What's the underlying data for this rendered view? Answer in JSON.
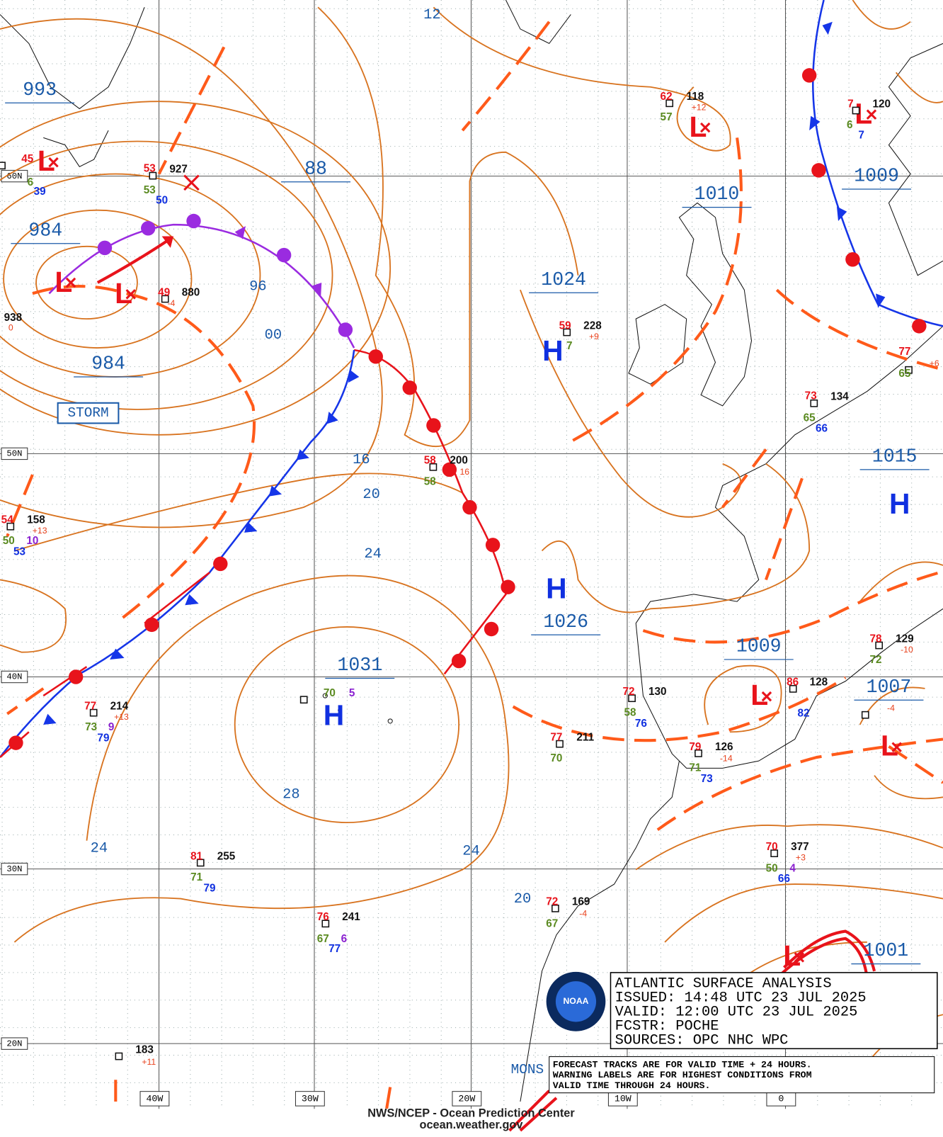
{
  "map": {
    "lat_labels": [
      "60N",
      "50N",
      "40N",
      "30N",
      "20N"
    ],
    "lon_labels": [
      "40W",
      "30W",
      "20W",
      "10W",
      "0"
    ],
    "pressure_labels": [
      "993",
      "984",
      "88",
      "984",
      "1024",
      "1010",
      "1009",
      "1026",
      "1031",
      "1009",
      "1007",
      "1015",
      "1001"
    ],
    "isobar_labels": [
      "12",
      "96",
      "00",
      "16",
      "20",
      "24",
      "28",
      "24",
      "24",
      "20"
    ],
    "highs": [
      "H",
      "H",
      "H",
      "H"
    ],
    "lows": [
      "L",
      "L",
      "L",
      "L",
      "L",
      "L",
      "L",
      "L"
    ],
    "warning": "STORM",
    "partial_label": "MONS",
    "stations": [
      [
        "45",
        "6",
        "39"
      ],
      [
        "53",
        "927",
        "53",
        "50"
      ],
      [
        "49",
        "880",
        "-4"
      ],
      [
        "938",
        "0"
      ],
      [
        "59",
        "228",
        "+9",
        "7"
      ],
      [
        "62",
        "118",
        "+12",
        "57"
      ],
      [
        "7",
        "120",
        "6",
        "7"
      ],
      [
        "77",
        "+6",
        "65"
      ],
      [
        "73",
        "134",
        "65",
        "66"
      ],
      [
        "58",
        "200",
        "16",
        "58"
      ],
      [
        "54",
        "158",
        "+13",
        "50",
        "10",
        "53"
      ],
      [
        "77",
        "214",
        "+13",
        "73",
        "9",
        "79"
      ],
      [
        "70",
        "5"
      ],
      [
        "72",
        "130",
        "58",
        "76"
      ],
      [
        "86",
        "128",
        "82"
      ],
      [
        "78",
        "129",
        "-10",
        "72"
      ],
      [
        "-4"
      ],
      [
        "77",
        "211",
        "70"
      ],
      [
        "79",
        "126",
        "-14",
        "71",
        "73"
      ],
      [
        "70",
        "377",
        "+3",
        "50",
        "4",
        "66"
      ],
      [
        "81",
        "255",
        "71",
        "79"
      ],
      [
        "72",
        "169",
        "-4",
        "67"
      ],
      [
        "76",
        "241",
        "67",
        "6",
        "77"
      ],
      [
        "183",
        "+11"
      ]
    ]
  },
  "info_box": {
    "lines": [
      "ATLANTIC SURFACE ANALYSIS",
      "ISSUED: 14:48 UTC 23 JUL 2025",
      "VALID:  12:00 UTC 23 JUL 2025",
      "FCSTR:  POCHE",
      "SOURCES: OPC NHC WPC"
    ]
  },
  "notes": {
    "lines": [
      "FORECAST TRACKS ARE FOR VALID TIME + 24 HOURS.",
      "WARNING LABELS ARE FOR HIGHEST CONDITIONS FROM",
      "VALID TIME THROUGH 24 HOURS."
    ]
  },
  "logo": "NOAA",
  "footer": {
    "agency": "NWS/NCEP - Ocean Prediction Center",
    "url": "ocean.weather.gov"
  }
}
